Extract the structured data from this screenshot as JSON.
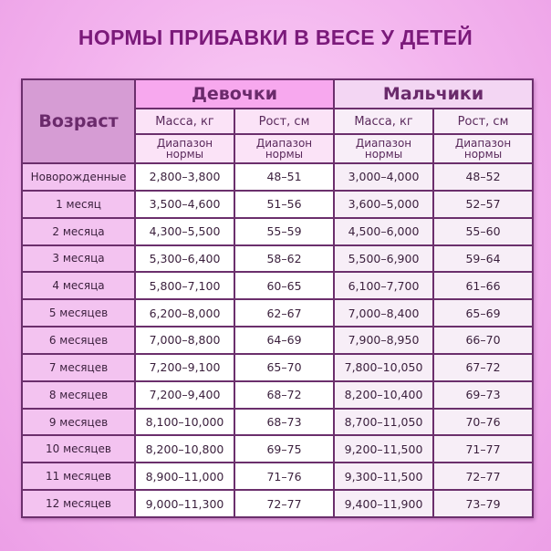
{
  "title": "НОРМЫ ПРИБАВКИ В ВЕСЕ У ДЕТЕЙ",
  "header": {
    "age": "Возраст",
    "girls": "Девочки",
    "boys": "Мальчики",
    "mass": "Масса, кг",
    "height": "Рост, см",
    "range_line1": "Диапазон",
    "range_line2": "нормы"
  },
  "rows": [
    {
      "age": "Новорожденные",
      "girls_mass": "2,800–3,800",
      "girls_height": "48–51",
      "boys_mass": "3,000–4,000",
      "boys_height": "48–52"
    },
    {
      "age": "1 месяц",
      "girls_mass": "3,500–4,600",
      "girls_height": "51–56",
      "boys_mass": "3,600–5,000",
      "boys_height": "52–57"
    },
    {
      "age": "2 месяца",
      "girls_mass": "4,300–5,500",
      "girls_height": "55–59",
      "boys_mass": "4,500–6,000",
      "boys_height": "55–60"
    },
    {
      "age": "3 месяца",
      "girls_mass": "5,300–6,400",
      "girls_height": "58–62",
      "boys_mass": "5,500–6,900",
      "boys_height": "59–64"
    },
    {
      "age": "4 месяца",
      "girls_mass": "5,800–7,100",
      "girls_height": "60–65",
      "boys_mass": "6,100–7,700",
      "boys_height": "61–66"
    },
    {
      "age": "5 месяцев",
      "girls_mass": "6,200–8,000",
      "girls_height": "62–67",
      "boys_mass": "7,000–8,400",
      "boys_height": "65–69"
    },
    {
      "age": "6 месяцев",
      "girls_mass": "7,000–8,800",
      "girls_height": "64–69",
      "boys_mass": "7,900–8,950",
      "boys_height": "66–70"
    },
    {
      "age": "7 месяцев",
      "girls_mass": "7,200–9,100",
      "girls_height": "65–70",
      "boys_mass": "7,800–10,050",
      "boys_height": "67–72"
    },
    {
      "age": "8 месяцев",
      "girls_mass": "7,200–9,400",
      "girls_height": "68–72",
      "boys_mass": "8,200–10,400",
      "boys_height": "69–73"
    },
    {
      "age": "9 месяцев",
      "girls_mass": "8,100–10,000",
      "girls_height": "68–73",
      "boys_mass": "8,700–11,050",
      "boys_height": "70–76"
    },
    {
      "age": "10 месяцев",
      "girls_mass": "8,200–10,800",
      "girls_height": "69–75",
      "boys_mass": "9,200–11,500",
      "boys_height": "71–77"
    },
    {
      "age": "11 месяцев",
      "girls_mass": "8,900–11,000",
      "girls_height": "71–76",
      "boys_mass": "9,300–11,500",
      "boys_height": "72–77"
    },
    {
      "age": "12 месяцев",
      "girls_mass": "9,000–11,300",
      "girls_height": "72–77",
      "boys_mass": "9,400–11,900",
      "boys_height": "73–79"
    }
  ]
}
